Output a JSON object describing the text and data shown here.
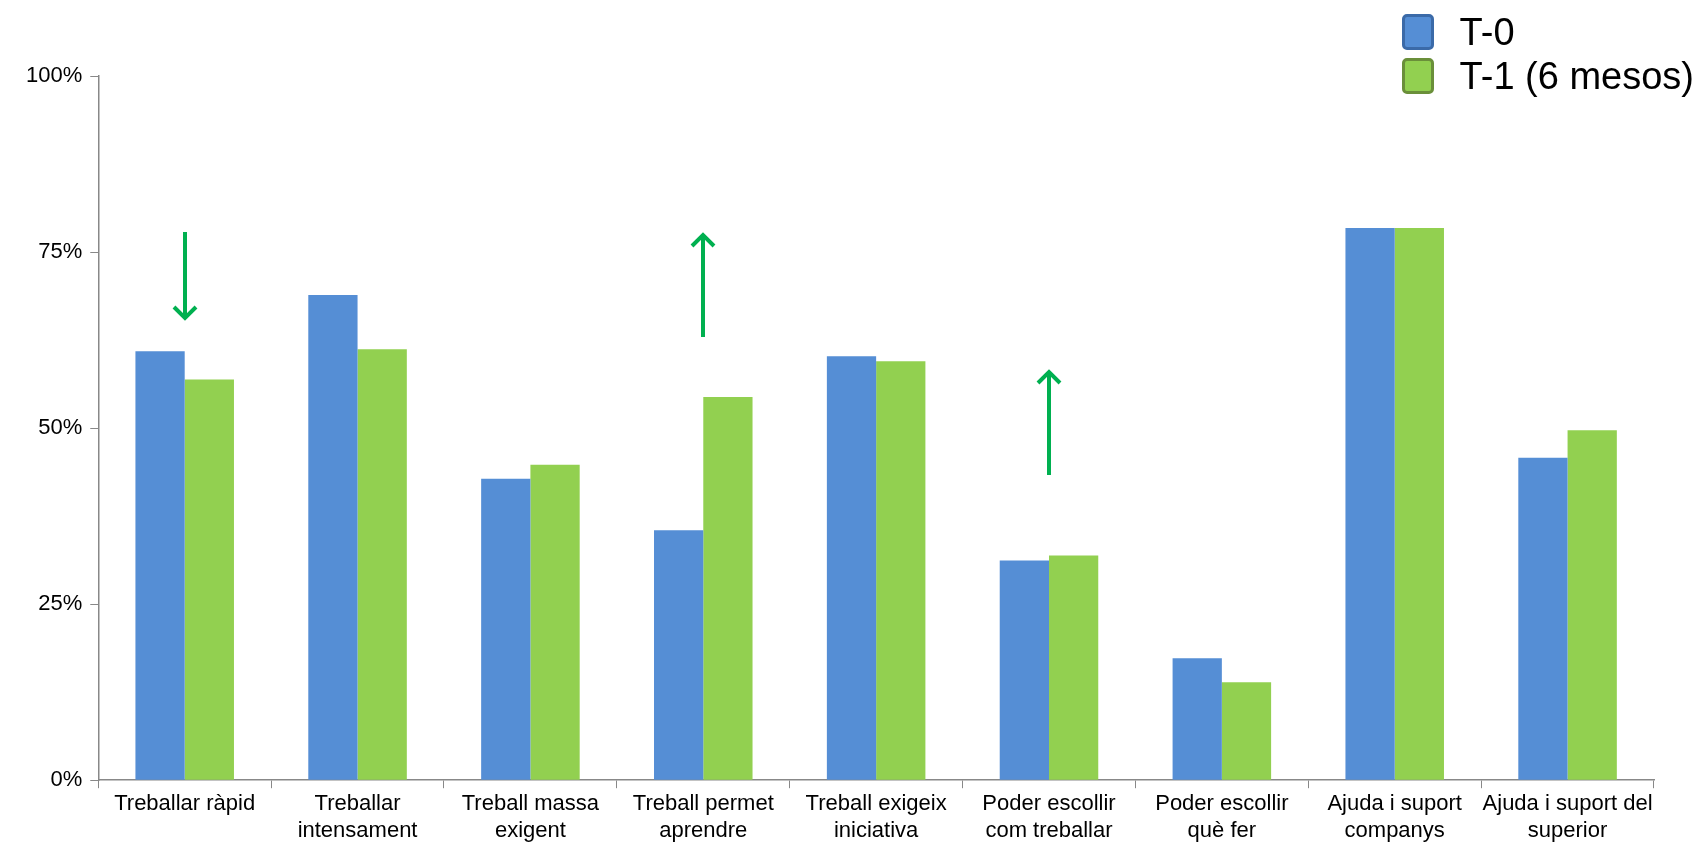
{
  "chart_data": {
    "type": "bar",
    "categories": [
      "Treballar ràpid",
      "Treballar intensament",
      "Treball massa exigent",
      "Treball permet aprendre",
      "Treball exigeix iniciativa",
      "Poder escollir com treballar",
      "Poder escollir què fer",
      "Ajuda i suport companys",
      "Ajuda i suport del superior"
    ],
    "series": [
      {
        "name": "T-0",
        "color": "#558ed5",
        "values": [
          60.9,
          68.9,
          42.8,
          35.5,
          60.2,
          31.2,
          17.3,
          78.4,
          45.8
        ]
      },
      {
        "name": "T-1 (6 mesos)",
        "color": "#92d050",
        "values": [
          56.9,
          61.2,
          44.8,
          54.4,
          59.5,
          31.9,
          13.9,
          78.4,
          49.7
        ]
      }
    ],
    "ylim": [
      0,
      100
    ],
    "yticks": [
      {
        "value": 0,
        "label": "0%"
      },
      {
        "value": 25,
        "label": "25%"
      },
      {
        "value": 50,
        "label": "50%"
      },
      {
        "value": 75,
        "label": "75%"
      },
      {
        "value": 100,
        "label": "100%"
      }
    ],
    "grid": false,
    "legend": "top right"
  }
}
